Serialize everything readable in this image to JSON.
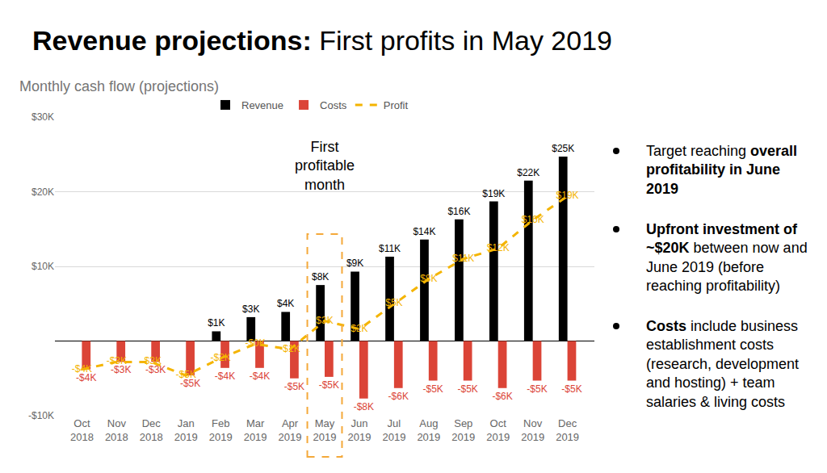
{
  "chart_data": {
    "type": "bar",
    "title": "Revenue projections: First profits in May 2019",
    "subtitle": "Monthly cash flow (projections)",
    "categories": [
      "Oct 2018",
      "Nov 2018",
      "Dec 2018",
      "Jan 2019",
      "Feb 2019",
      "Mar 2019",
      "Apr 2019",
      "May 2019",
      "Jun 2019",
      "Jul 2019",
      "Aug 2019",
      "Sep 2019",
      "Oct 2019",
      "Nov 2019",
      "Dec 2019"
    ],
    "series": [
      {
        "name": "Revenue",
        "type": "bar",
        "color": "#000000",
        "values": [
          null,
          null,
          null,
          null,
          1300,
          3200,
          3900,
          7500,
          9300,
          11300,
          13600,
          16300,
          18700,
          21500,
          24700
        ],
        "value_labels": [
          null,
          null,
          null,
          null,
          "$1K",
          "$3K",
          "$4K",
          "$8K",
          "$9K",
          "$11K",
          "$14K",
          "$16K",
          "$19K",
          "$22K",
          "$25K"
        ]
      },
      {
        "name": "Costs",
        "type": "bar",
        "color": "#db4437",
        "values": [
          -3800,
          -2800,
          -2800,
          -4600,
          -3600,
          -3600,
          -5000,
          -4800,
          -7700,
          -6300,
          -5300,
          -5300,
          -6300,
          -5300,
          -5300
        ],
        "value_labels": [
          "-$4K",
          "-$3K",
          "-$3K",
          "-$5K",
          "-$4K",
          "-$4K",
          "-$5K",
          "-$5K",
          "-$8K",
          "-$6K",
          "-$5K",
          "-$5K",
          "-$6K",
          "-$5K",
          "-$5K"
        ]
      },
      {
        "name": "Profit",
        "type": "line",
        "color": "#f4b400",
        "line_style": "dashed",
        "values": [
          -3800,
          -2800,
          -2800,
          -4600,
          -2300,
          -400,
          -1100,
          2700,
          1600,
          5000,
          8300,
          11000,
          12400,
          16200,
          19400
        ],
        "value_labels": [
          "-$4K",
          "-$3K",
          "-$3K",
          "-$5K",
          "-$2K",
          "-$0K",
          "-$1K",
          "$3K",
          "$2K",
          "$5K",
          "$8K",
          "$11K",
          "$12K",
          "$16K",
          "$19K"
        ]
      }
    ],
    "ylim": [
      -10000,
      30000
    ],
    "yticks": [
      {
        "value": -10000,
        "label": "-$10K"
      },
      {
        "value": 10000,
        "label": "$10K"
      },
      {
        "value": 20000,
        "label": "$20K"
      },
      {
        "value": 30000,
        "label": "$30K"
      }
    ],
    "grid": true,
    "legend": "top",
    "data_labels": true,
    "annotations": [
      {
        "text": "First profitable month",
        "x": "May 2019"
      }
    ],
    "notes": [
      [
        {
          "text": "Target reaching"
        },
        {
          "text": "overall profitability in June 2019",
          "bold": true
        }
      ],
      [
        {
          "text": "Upfront investment of ~$20K",
          "bold": true
        },
        {
          "text": "between now and June 2019 (before reaching profitability)"
        }
      ],
      [
        {
          "text": "Costs",
          "bold": true
        },
        {
          "text": "include business establishment costs (research, development and hosting) + team salaries & living costs"
        }
      ]
    ]
  }
}
